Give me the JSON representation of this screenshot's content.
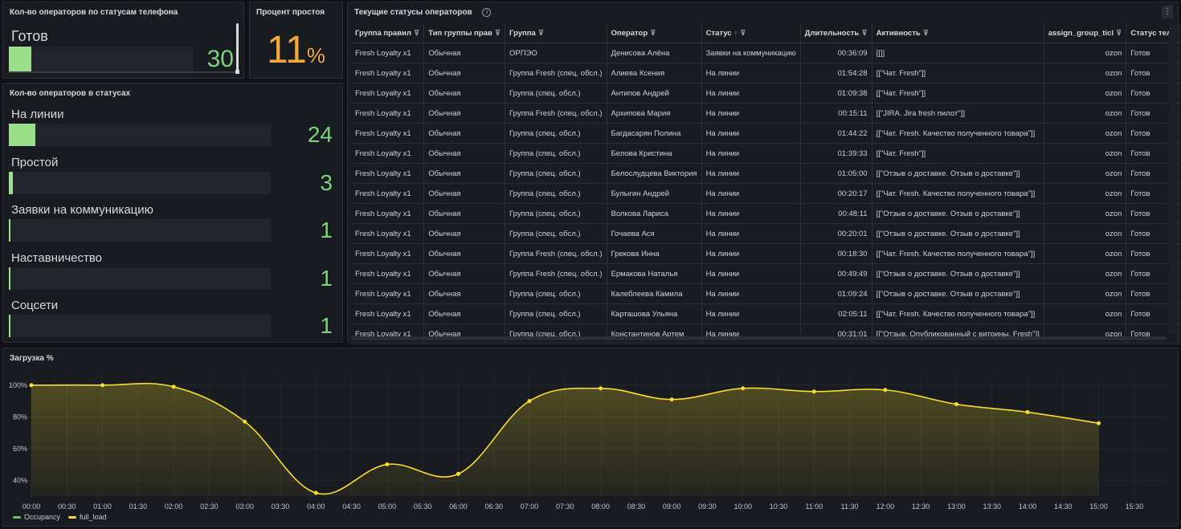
{
  "phone_status_panel": {
    "title": "Кол-во операторов по статусам телефона",
    "label": "Готов",
    "value": "30",
    "fill_fraction": 0.12
  },
  "idle_panel": {
    "title": "Процент простоя",
    "value": "11",
    "unit": "%"
  },
  "status_counts_panel": {
    "title": "Кол-во операторов в статусах",
    "items": [
      {
        "label": "На линии",
        "value": "24",
        "fill_fraction": 0.1
      },
      {
        "label": "Простой",
        "value": "3",
        "fill_fraction": 0.015
      },
      {
        "label": "Заявки на коммуникацию",
        "value": "1",
        "fill_fraction": 0.005
      },
      {
        "label": "Наставничество",
        "value": "1",
        "fill_fraction": 0.005
      },
      {
        "label": "Соцсети",
        "value": "1",
        "fill_fraction": 0.005
      }
    ]
  },
  "table_panel": {
    "title": "Текущие статусы операторов",
    "info_icon": "info-icon",
    "menu_icon": "more-vertical-icon",
    "columns": [
      {
        "label": "Группа правил",
        "filter": true
      },
      {
        "label": "Тип группы прав",
        "filter": true
      },
      {
        "label": "Группа",
        "filter": true
      },
      {
        "label": "Оператор",
        "filter": true
      },
      {
        "label": "Статус",
        "filter": true,
        "sort": "↑"
      },
      {
        "label": "Длительность",
        "filter": true
      },
      {
        "label": "Активность",
        "filter": true
      },
      {
        "label": "assign_group_ticl",
        "filter": true
      },
      {
        "label": "Статус теле",
        "filter": false
      }
    ],
    "rows": [
      [
        "Fresh Loyalty x1",
        "Обычная",
        "ОРПЭО",
        "Денисова Алёна",
        "Заявки на коммуникацию",
        "00:36:09",
        "[[]]",
        "ozon",
        "Готов"
      ],
      [
        "Fresh Loyalty x1",
        "Обычная",
        "Группа Fresh (спец. обсл.)",
        "Алиева Ксения",
        "На линии",
        "01:54:28",
        "[[\"Чат. Fresh\"]]",
        "ozon",
        "Готов"
      ],
      [
        "Fresh Loyalty x1",
        "Обычная",
        "Группа (спец. обсл.)",
        "Антипов Андрей",
        "На линии",
        "01:09:38",
        "[[\"Чат. Fresh\"]]",
        "ozon",
        "Готов"
      ],
      [
        "Fresh Loyalty x1",
        "Обычная",
        "Группа Fresh (спец. обсл.)",
        "Архипова Мария",
        "На линии",
        "00:15:11",
        "[[\"JIRA. Jira fresh пилот\"]]",
        "ozon",
        "Готов"
      ],
      [
        "Fresh Loyalty x1",
        "Обычная",
        "Группа (спец. обсл.)",
        "Багдасарян Полина",
        "На линии",
        "01:44:22",
        "[[\"Чат. Fresh. Качество полученного товара\"]]",
        "ozon",
        "Готов"
      ],
      [
        "Fresh Loyalty x1",
        "Обычная",
        "Группа (спец. обсл.)",
        "Белова Кристина",
        "На линии",
        "01:39:33",
        "[[\"Чат. Fresh\"]]",
        "ozon",
        "Готов"
      ],
      [
        "Fresh Loyalty x1",
        "Обычная",
        "Группа (спец. обсл.)",
        "Белослудцева Виктория",
        "На линии",
        "01:05:00",
        "[[\"Отзыв о доставке. Отзыв о доставке\"]]",
        "ozon",
        "Готов"
      ],
      [
        "Fresh Loyalty x1",
        "Обычная",
        "Группа (спец. обсл.)",
        "Булыгин Андрей",
        "На линии",
        "00:20:17",
        "[[\"Чат. Fresh. Качество полученного товара\"]]",
        "ozon",
        "Готов"
      ],
      [
        "Fresh Loyalty x1",
        "Обычная",
        "Группа (спец. обсл.)",
        "Волкова Лариса",
        "На линии",
        "00:48:11",
        "[[\"Отзыв о доставке. Отзыв о доставке\"]]",
        "ozon",
        "Готов"
      ],
      [
        "Fresh Loyalty x1",
        "Обычная",
        "Группа (спец. обсл.)",
        "Гочаева Ася",
        "На линии",
        "00:20:01",
        "[[\"Отзыв о доставке. Отзыв о доставке\"]]",
        "ozon",
        "Готов"
      ],
      [
        "Fresh Loyalty x1",
        "Обычная",
        "Группа Fresh (спец. обсл.)",
        "Грекова Инна",
        "На линии",
        "00:18:30",
        "[[\"Чат. Fresh. Качество полученного товара\"]]",
        "ozon",
        "Готов"
      ],
      [
        "Fresh Loyalty x1",
        "Обычная",
        "Группа Fresh (спец. обсл.)",
        "Ермакова Наталья",
        "На линии",
        "00:49:49",
        "[[\"Отзыв о доставке. Отзыв о доставке\"]]",
        "ozon",
        "Готов"
      ],
      [
        "Fresh Loyalty x1",
        "Обычная",
        "Группа (спец. обсл.)",
        "Калеблеева Камила",
        "На линии",
        "01:09:24",
        "[[\"Отзыв о доставке. Отзыв о доставке\"]]",
        "ozon",
        "Готов"
      ],
      [
        "Fresh Loyalty x1",
        "Обычная",
        "Группа (спец. обсл.)",
        "Карташова Ульяна",
        "На линии",
        "02:05:11",
        "[[\"Чат. Fresh. Качество полученного товара\"]]",
        "ozon",
        "Готов"
      ],
      [
        "Fresh Loyalty x1",
        "Обычная",
        "Группа (спец. обсл.)",
        "Константинов Артем",
        "На линии",
        "00:31:01",
        "[[\"Отзыв. Опубликованный с витрины. Fresh\"]]",
        "ozon",
        "Готов"
      ]
    ]
  },
  "chart_panel": {
    "title": "Загрузка %",
    "legend": [
      {
        "name": "Occupancy",
        "color": "#73bf69"
      },
      {
        "name": "full_load",
        "color": "#fade2a"
      }
    ]
  },
  "chart_data": {
    "type": "area",
    "title": "Загрузка %",
    "xlabel": "",
    "ylabel": "",
    "x_ticks": [
      "00:00",
      "00:30",
      "01:00",
      "01:30",
      "02:00",
      "02:30",
      "03:00",
      "03:30",
      "04:00",
      "04:30",
      "05:00",
      "05:30",
      "06:00",
      "06:30",
      "07:00",
      "07:30",
      "08:00",
      "08:30",
      "09:00",
      "09:30",
      "10:00",
      "10:30",
      "11:00",
      "11:30",
      "12:00",
      "12:30",
      "13:00",
      "13:30",
      "14:00",
      "14:30",
      "15:00",
      "15:30"
    ],
    "x_range_hours": [
      0,
      15.75
    ],
    "y_ticks": [
      "100%",
      "80%",
      "60%",
      "40%"
    ],
    "ylim": [
      30,
      106
    ],
    "grid": true,
    "legend_position": "bottom-left",
    "series": [
      {
        "name": "full_load",
        "color": "#fade2a",
        "x_hours": [
          0,
          1,
          2,
          3,
          4,
          5,
          6,
          7,
          8,
          9,
          10,
          11,
          12,
          13,
          14,
          15
        ],
        "values": [
          100,
          100,
          99,
          77,
          32,
          50,
          44,
          90,
          98,
          91,
          98,
          96,
          97,
          88,
          83,
          76
        ]
      }
    ]
  }
}
